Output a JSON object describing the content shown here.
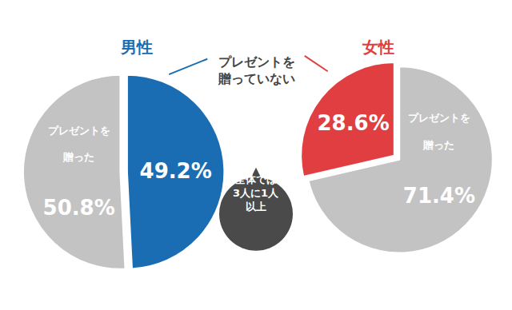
{
  "chart_data": [
    {
      "type": "pie",
      "title": "男性",
      "categories": [
        "プレゼントを\n贈っていない",
        "プレゼントを\n贈った"
      ],
      "values": [
        49.2,
        50.8
      ],
      "value_labels": [
        "49.2%",
        "50.8%"
      ],
      "colors": [
        "#1a6db3",
        "#c3c3c3"
      ],
      "data_labels": true
    },
    {
      "type": "pie",
      "title": "女性",
      "categories": [
        "プレゼントを\n贈った",
        "プレゼントを\n贈っていない"
      ],
      "values": [
        71.4,
        28.6
      ],
      "value_labels": [
        "71.4%",
        "28.6%"
      ],
      "colors": [
        "#c3c3c3",
        "#e03e40"
      ],
      "data_labels": true
    }
  ],
  "annotations": [
    "全体では\n3人に1人\n以上"
  ]
}
